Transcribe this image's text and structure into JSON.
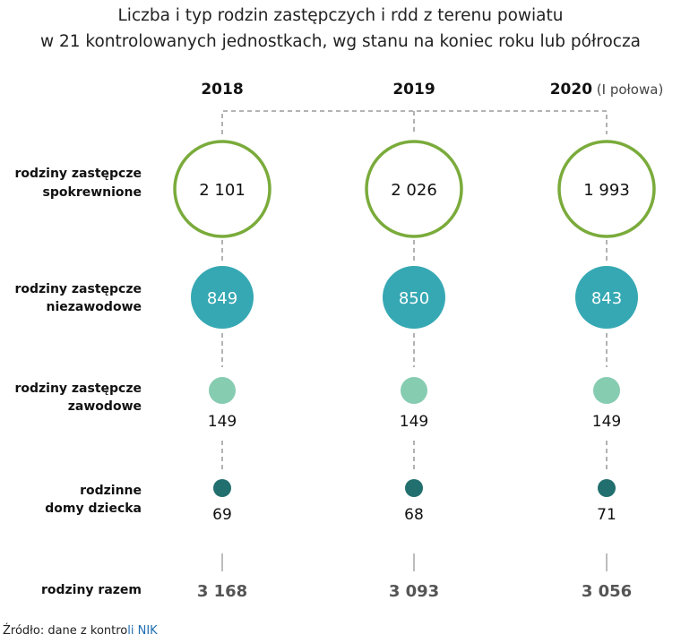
{
  "chart_data": {
    "type": "bubble-infographic",
    "title_lines": [
      "Liczba i typ rodzin zastępczych i rdd z terenu powiatu",
      "w 21 kontrolowanych jednostkach, wg stanu na koniec roku lub półrocza"
    ],
    "columns": [
      {
        "year": "2018",
        "suffix": ""
      },
      {
        "year": "2019",
        "suffix": ""
      },
      {
        "year": "2020",
        "suffix": "(I połowa)"
      }
    ],
    "rows": [
      {
        "label": [
          "rodziny zastępcze",
          "spokrewnione"
        ],
        "values": [
          "2 101",
          "2 026",
          "1 993"
        ],
        "color": "#7aab3b",
        "style": "outline"
      },
      {
        "label": [
          "rodziny zastępcze",
          "niezawodowe"
        ],
        "values": [
          "849",
          "850",
          "843"
        ],
        "color": "#36a8b3",
        "style": "filled"
      },
      {
        "label": [
          "rodziny zastępcze",
          "zawodowe"
        ],
        "values": [
          "149",
          "149",
          "149"
        ],
        "color": "#86ccb0",
        "style": "filled"
      },
      {
        "label": [
          "rodzinne",
          "domy dziecka"
        ],
        "values": [
          "69",
          "68",
          "71"
        ],
        "color": "#216f6e",
        "style": "filled"
      }
    ],
    "total": {
      "label": "rodziny razem",
      "values": [
        "3 168",
        "3 093",
        "3 056"
      ]
    }
  },
  "source": {
    "prefix": "Źródło: dane z kontro",
    "highlight": "li NIK"
  }
}
